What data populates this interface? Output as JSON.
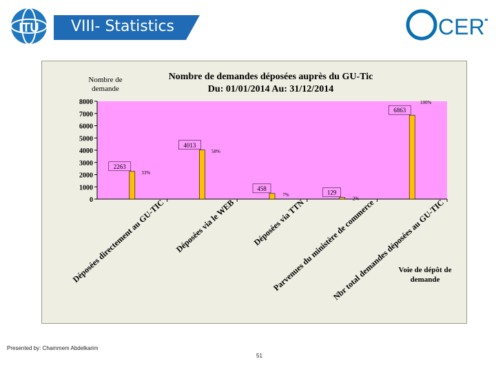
{
  "slide": {
    "title": "VIII- Statistics",
    "logo_left": "ITU",
    "logo_right": "CERT",
    "presenter": "Presented by: Chammem Abdelkarim",
    "page_number": "51"
  },
  "chart_data": {
    "type": "bar",
    "title_line1": "Nombre de demandes déposées auprès du GU-Tic",
    "title_line2": "Du: 01/01/2014 Au: 31/12/2014",
    "ylabel_line1": "Nombre de",
    "ylabel_line2": "demande",
    "xlabel_line1": "Voie de dépôt de",
    "xlabel_line2": "demande",
    "ylim": [
      0,
      8000
    ],
    "yticks": [
      0,
      1000,
      2000,
      3000,
      4000,
      5000,
      6000,
      7000,
      8000
    ],
    "categories": [
      "Déposées directement au GU-TIC",
      "Déposées via le WEB",
      "Déposées via TTN",
      "Parvenues du ministère de commerce",
      "Nbr total demandes déposées au GU-TIC"
    ],
    "values": [
      2263,
      4013,
      458,
      129,
      6863
    ],
    "value_labels": [
      "2263",
      "4013",
      "458",
      "129",
      "6863"
    ],
    "percent_labels": [
      "33%",
      "58%",
      "7%",
      "2%",
      "100%"
    ],
    "bar_color": "#ffc000",
    "plot_background": "#ff99ff",
    "grid": false
  }
}
